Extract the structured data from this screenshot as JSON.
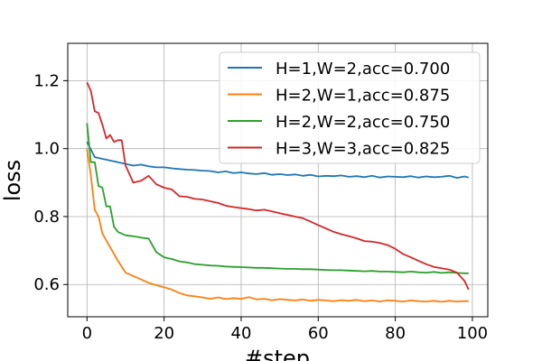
{
  "chart_data": {
    "type": "line",
    "xlabel": "#step",
    "ylabel": "loss",
    "xlim": [
      -5,
      104
    ],
    "ylim": [
      0.505,
      1.31
    ],
    "xticks": [
      0,
      20,
      40,
      60,
      80,
      100
    ],
    "yticks": [
      0.6,
      0.8,
      1.0,
      1.2
    ],
    "xtick_labels": [
      "0",
      "20",
      "40",
      "60",
      "80",
      "100"
    ],
    "ytick_labels": [
      "0.6",
      "0.8",
      "1.0",
      "1.2"
    ],
    "grid": true,
    "legend_position": "top-right",
    "series": [
      {
        "name": "H=1,W=2,acc=0.700",
        "color": "#1f77b4",
        "x": [
          0,
          2,
          4,
          6,
          8,
          10,
          12,
          14,
          16,
          18,
          20,
          22,
          24,
          26,
          28,
          30,
          32,
          34,
          36,
          38,
          40,
          42,
          44,
          46,
          48,
          50,
          52,
          54,
          56,
          58,
          60,
          62,
          64,
          66,
          68,
          70,
          72,
          74,
          76,
          78,
          80,
          82,
          84,
          86,
          88,
          90,
          92,
          94,
          96,
          98,
          99
        ],
        "values": [
          1.02,
          0.975,
          0.97,
          0.965,
          0.96,
          0.955,
          0.95,
          0.953,
          0.948,
          0.945,
          0.945,
          0.942,
          0.94,
          0.938,
          0.937,
          0.935,
          0.934,
          0.93,
          0.933,
          0.928,
          0.93,
          0.927,
          0.925,
          0.928,
          0.923,
          0.925,
          0.922,
          0.924,
          0.92,
          0.923,
          0.918,
          0.92,
          0.919,
          0.921,
          0.917,
          0.919,
          0.916,
          0.92,
          0.915,
          0.918,
          0.917,
          0.916,
          0.919,
          0.915,
          0.918,
          0.916,
          0.917,
          0.92,
          0.914,
          0.918,
          0.915
        ]
      },
      {
        "name": "H=2,W=1,acc=0.875",
        "color": "#ff7f0e",
        "x": [
          0,
          1,
          2,
          3,
          4,
          6,
          8,
          10,
          12,
          14,
          16,
          18,
          20,
          22,
          24,
          26,
          28,
          30,
          32,
          34,
          36,
          38,
          40,
          42,
          44,
          46,
          48,
          50,
          52,
          54,
          56,
          58,
          60,
          62,
          64,
          66,
          68,
          70,
          72,
          74,
          76,
          78,
          80,
          82,
          84,
          86,
          88,
          90,
          92,
          94,
          96,
          98,
          99
        ],
        "values": [
          1.0,
          0.92,
          0.82,
          0.8,
          0.75,
          0.71,
          0.67,
          0.635,
          0.625,
          0.615,
          0.605,
          0.598,
          0.592,
          0.585,
          0.575,
          0.568,
          0.565,
          0.562,
          0.558,
          0.562,
          0.557,
          0.56,
          0.558,
          0.563,
          0.556,
          0.558,
          0.554,
          0.557,
          0.555,
          0.553,
          0.556,
          0.552,
          0.555,
          0.553,
          0.551,
          0.554,
          0.552,
          0.555,
          0.551,
          0.553,
          0.55,
          0.554,
          0.552,
          0.55,
          0.553,
          0.551,
          0.55,
          0.552,
          0.549,
          0.552,
          0.55,
          0.551,
          0.551
        ]
      },
      {
        "name": "H=2,W=2,acc=0.750",
        "color": "#2ca02c",
        "x": [
          0,
          1,
          2,
          3,
          4,
          5,
          6,
          7,
          8,
          9,
          10,
          12,
          14,
          16,
          18,
          20,
          22,
          24,
          26,
          28,
          30,
          32,
          34,
          36,
          38,
          40,
          42,
          44,
          46,
          48,
          50,
          52,
          54,
          56,
          58,
          60,
          62,
          64,
          66,
          68,
          70,
          72,
          74,
          76,
          78,
          80,
          82,
          84,
          86,
          88,
          90,
          92,
          94,
          96,
          98,
          99
        ],
        "values": [
          1.075,
          0.96,
          0.96,
          0.89,
          0.885,
          0.83,
          0.83,
          0.77,
          0.755,
          0.75,
          0.745,
          0.742,
          0.738,
          0.735,
          0.695,
          0.68,
          0.675,
          0.668,
          0.665,
          0.66,
          0.658,
          0.656,
          0.655,
          0.653,
          0.652,
          0.651,
          0.65,
          0.649,
          0.649,
          0.648,
          0.647,
          0.646,
          0.646,
          0.645,
          0.645,
          0.644,
          0.643,
          0.642,
          0.642,
          0.641,
          0.64,
          0.639,
          0.64,
          0.638,
          0.638,
          0.637,
          0.636,
          0.638,
          0.636,
          0.635,
          0.637,
          0.634,
          0.636,
          0.634,
          0.633,
          0.633
        ]
      },
      {
        "name": "H=3,W=3,acc=0.825",
        "color": "#d62728",
        "x": [
          0,
          1,
          2,
          3,
          4,
          5,
          6,
          7,
          8,
          9,
          10,
          11,
          12,
          14,
          16,
          18,
          20,
          22,
          24,
          26,
          28,
          30,
          32,
          34,
          36,
          38,
          40,
          42,
          44,
          46,
          48,
          50,
          52,
          54,
          56,
          58,
          60,
          62,
          64,
          66,
          68,
          70,
          72,
          74,
          76,
          78,
          80,
          82,
          84,
          86,
          88,
          90,
          92,
          94,
          96,
          98,
          99
        ],
        "values": [
          1.195,
          1.17,
          1.11,
          1.105,
          1.07,
          1.03,
          1.04,
          1.02,
          1.025,
          1.025,
          0.95,
          0.925,
          0.9,
          0.905,
          0.92,
          0.895,
          0.885,
          0.88,
          0.86,
          0.858,
          0.852,
          0.85,
          0.845,
          0.84,
          0.832,
          0.828,
          0.825,
          0.822,
          0.818,
          0.82,
          0.815,
          0.81,
          0.805,
          0.8,
          0.795,
          0.785,
          0.775,
          0.765,
          0.755,
          0.748,
          0.742,
          0.736,
          0.728,
          0.726,
          0.722,
          0.716,
          0.705,
          0.69,
          0.68,
          0.67,
          0.66,
          0.652,
          0.648,
          0.644,
          0.635,
          0.61,
          0.585
        ]
      }
    ]
  }
}
